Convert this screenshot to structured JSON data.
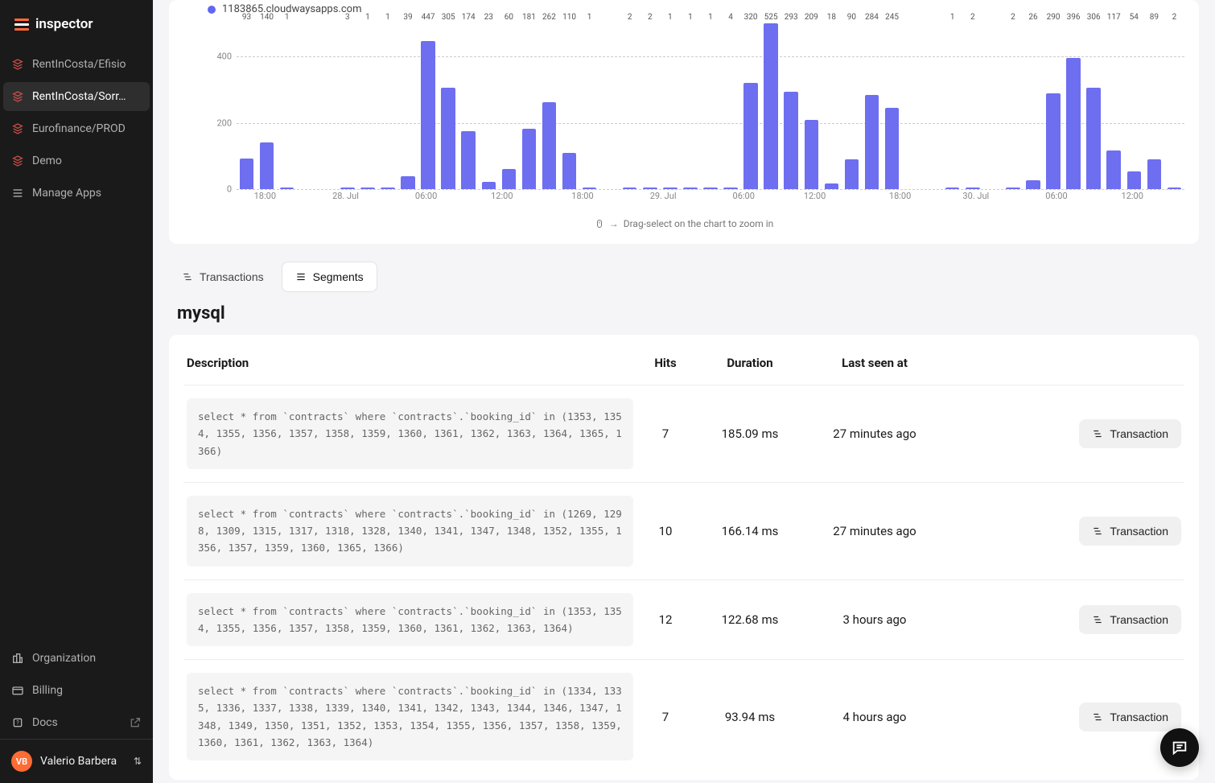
{
  "brand": {
    "name": "inspector"
  },
  "sidebar": {
    "apps": [
      {
        "label": "RentInCosta/Efisio",
        "active": false
      },
      {
        "label": "RentInCosta/Sorr…",
        "active": true
      },
      {
        "label": "Eurofinance/PROD",
        "active": false
      },
      {
        "label": "Demo",
        "active": false
      }
    ],
    "manage": "Manage Apps",
    "footer": [
      {
        "label": "Organization",
        "icon": "org"
      },
      {
        "label": "Billing",
        "icon": "billing"
      },
      {
        "label": "Docs",
        "icon": "docs",
        "external": true
      }
    ],
    "user": {
      "initials": "VB",
      "name": "Valerio Barbera"
    }
  },
  "chart": {
    "type": "bar",
    "legend": {
      "color": "#6366f1",
      "label": "1183865.cloudwaysapps.com"
    },
    "bar_color": "#6e6ef0",
    "grid_color": "#cccccc",
    "background": "#ffffff",
    "ylim": [
      0,
      500
    ],
    "yticks": [
      0,
      200,
      400
    ],
    "values": [
      93,
      140,
      1,
      null,
      null,
      3,
      1,
      1,
      39,
      447,
      305,
      174,
      23,
      60,
      181,
      262,
      110,
      1,
      null,
      2,
      2,
      1,
      1,
      1,
      4,
      320,
      525,
      293,
      209,
      18,
      90,
      284,
      245,
      null,
      null,
      1,
      2,
      null,
      2,
      26,
      290,
      396,
      306,
      117,
      54,
      89,
      2
    ],
    "xticks": [
      {
        "pos_pct": 3,
        "label": "18:00"
      },
      {
        "pos_pct": 11.5,
        "label": "28. Jul"
      },
      {
        "pos_pct": 20,
        "label": "06:00"
      },
      {
        "pos_pct": 28,
        "label": "12:00"
      },
      {
        "pos_pct": 36.5,
        "label": "18:00"
      },
      {
        "pos_pct": 45,
        "label": "29. Jul"
      },
      {
        "pos_pct": 53.5,
        "label": "06:00"
      },
      {
        "pos_pct": 61,
        "label": "12:00"
      },
      {
        "pos_pct": 70,
        "label": "18:00"
      },
      {
        "pos_pct": 78,
        "label": "30. Jul"
      },
      {
        "pos_pct": 86.5,
        "label": "06:00"
      },
      {
        "pos_pct": 94.5,
        "label": "12:00"
      }
    ],
    "zoom_hint": "Drag-select on the chart to zoom in"
  },
  "tabs": {
    "transactions": "Transactions",
    "segments": "Segments",
    "active": "segments"
  },
  "section_title": "mysql",
  "table": {
    "headers": {
      "description": "Description",
      "hits": "Hits",
      "duration": "Duration",
      "last_seen": "Last seen at"
    },
    "action_label": "Transaction",
    "rows": [
      {
        "sql": "select * from `contracts` where `contracts`.`booking_id` in (1353, 1354, 1355, 1356, 1357, 1358, 1359, 1360, 1361, 1362, 1363, 1364, 1365, 1366)",
        "hits": 7,
        "duration": "185.09 ms",
        "seen": "27 minutes ago"
      },
      {
        "sql": "select * from `contracts` where `contracts`.`booking_id` in (1269, 1298, 1309, 1315, 1317, 1318, 1328, 1340, 1341, 1347, 1348, 1352, 1355, 1356, 1357, 1359, 1360, 1365, 1366)",
        "hits": 10,
        "duration": "166.14 ms",
        "seen": "27 minutes ago"
      },
      {
        "sql": "select * from `contracts` where `contracts`.`booking_id` in (1353, 1354, 1355, 1356, 1357, 1358, 1359, 1360, 1361, 1362, 1363, 1364)",
        "hits": 12,
        "duration": "122.68 ms",
        "seen": "3 hours ago"
      },
      {
        "sql": "select * from `contracts` where `contracts`.`booking_id` in (1334, 1335, 1336, 1337, 1338, 1339, 1340, 1341, 1342, 1343, 1344, 1346, 1347, 1348, 1349, 1350, 1351, 1352, 1353, 1354, 1355, 1356, 1357, 1358, 1359, 1360, 1361, 1362, 1363, 1364)",
        "hits": 7,
        "duration": "93.94 ms",
        "seen": "4 hours ago"
      }
    ]
  }
}
